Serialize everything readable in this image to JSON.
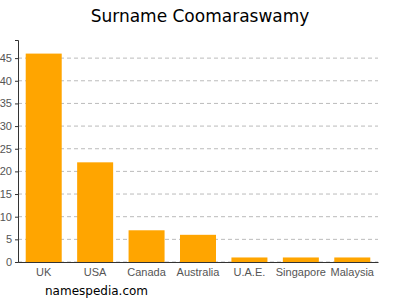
{
  "chart_data": {
    "type": "bar",
    "title": "Surname Coomaraswamy",
    "categories": [
      "UK",
      "USA",
      "Canada",
      "Australia",
      "U.A.E.",
      "Singapore",
      "Malaysia"
    ],
    "values": [
      46,
      22,
      7,
      6,
      1,
      1,
      1
    ],
    "color": "#ffa500",
    "ylim": [
      0,
      49
    ],
    "yticks": [
      0,
      5,
      10,
      15,
      20,
      25,
      30,
      35,
      40,
      45
    ],
    "grid": true,
    "annotations": [
      "namespedia.com"
    ]
  }
}
